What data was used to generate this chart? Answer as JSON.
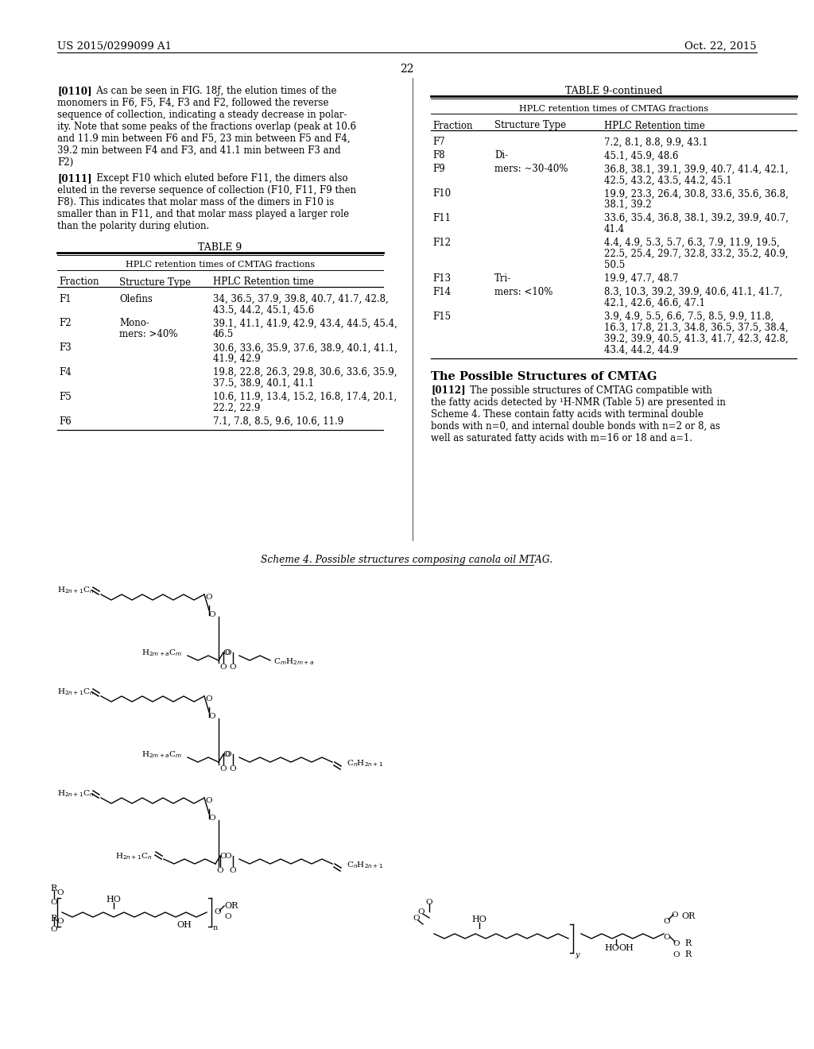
{
  "page_header_left": "US 2015/0299099 A1",
  "page_header_right": "Oct. 22, 2015",
  "page_number": "22",
  "scheme4_title": "Scheme 4. Possible structures composing canola oil MTAG.",
  "table9_rows": [
    [
      "F1",
      [
        "Olefins"
      ],
      [
        "34, 36.5, 37.9, 39.8, 40.7, 41.7, 42.8,",
        "43.5, 44.2, 45.1, 45.6"
      ]
    ],
    [
      "F2",
      [
        "Mono-",
        "mers: >40%"
      ],
      [
        "39.1, 41.1, 41.9, 42.9, 43.4, 44.5, 45.4,",
        "46.5"
      ]
    ],
    [
      "F3",
      [
        ""
      ],
      [
        "30.6, 33.6, 35.9, 37.6, 38.9, 40.1, 41.1,",
        "41.9, 42.9"
      ]
    ],
    [
      "F4",
      [
        ""
      ],
      [
        "19.8, 22.8, 26.3, 29.8, 30.6, 33.6, 35.9,",
        "37.5, 38.9, 40.1, 41.1"
      ]
    ],
    [
      "F5",
      [
        ""
      ],
      [
        "10.6, 11.9, 13.4, 15.2, 16.8, 17.4, 20.1,",
        "22.2, 22.9"
      ]
    ],
    [
      "F6",
      [
        ""
      ],
      [
        "7.1, 7.8, 8.5, 9.6, 10.6, 11.9"
      ]
    ]
  ],
  "table9cont_rows": [
    [
      "F7",
      [
        ""
      ],
      [
        "7.2, 8.1, 8.8, 9.9, 43.1"
      ]
    ],
    [
      "F8",
      [
        "Di-"
      ],
      [
        "45.1, 45.9, 48.6"
      ]
    ],
    [
      "F9",
      [
        "mers: ~30-40%"
      ],
      [
        "36.8, 38.1, 39.1, 39.9, 40.7, 41.4, 42.1,",
        "42.5, 43.2, 43.5, 44.2, 45.1"
      ]
    ],
    [
      "F10",
      [
        ""
      ],
      [
        "19.9, 23.3, 26.4, 30.8, 33.6, 35.6, 36.8,",
        "38.1, 39.2"
      ]
    ],
    [
      "F11",
      [
        ""
      ],
      [
        "33.6, 35.4, 36.8, 38.1, 39.2, 39.9, 40.7,",
        "41.4"
      ]
    ],
    [
      "F12",
      [
        ""
      ],
      [
        "4.4, 4.9, 5.3, 5.7, 6.3, 7.9, 11.9, 19.5,",
        "22.5, 25.4, 29.7, 32.8, 33.2, 35.2, 40.9,",
        "50.5"
      ]
    ],
    [
      "F13",
      [
        "Tri-"
      ],
      [
        "19.9, 47.7, 48.7"
      ]
    ],
    [
      "F14",
      [
        "mers: <10%"
      ],
      [
        "8.3, 10.3, 39.2, 39.9, 40.6, 41.1, 41.7,",
        "42.1, 42.6, 46.6, 47.1"
      ]
    ],
    [
      "F15",
      [
        ""
      ],
      [
        "3.9, 4.9, 5.5, 6.6, 7.5, 8.5, 9.9, 11.8,",
        "16.3, 17.8, 21.3, 34.8, 36.5, 37.5, 38.4,",
        "39.2, 39.9, 40.5, 41.3, 41.7, 42.3, 42.8,",
        "43.4, 44.2, 44.9"
      ]
    ]
  ]
}
